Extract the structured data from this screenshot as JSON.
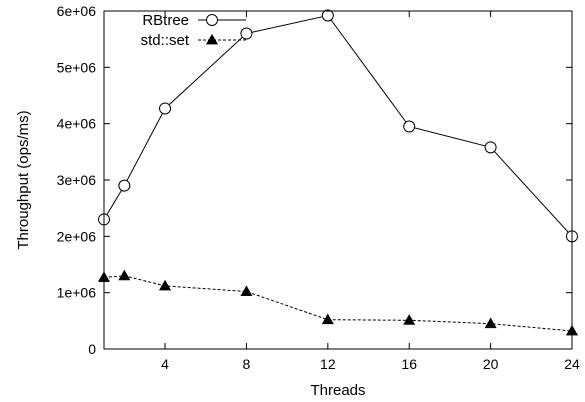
{
  "chart_data": {
    "type": "line",
    "xlabel": "Threads",
    "ylabel": "Throughput (ops/ms)",
    "xlim": [
      1,
      24
    ],
    "ylim": [
      0,
      6000000
    ],
    "x_ticks": [
      4,
      8,
      12,
      16,
      20,
      24
    ],
    "x_tick_labels": [
      "4",
      "8",
      "12",
      "16",
      "20",
      "24"
    ],
    "y_ticks": [
      0,
      1000000,
      2000000,
      3000000,
      4000000,
      5000000,
      6000000
    ],
    "y_tick_labels": [
      "0",
      "1e+06",
      "2e+06",
      "3e+06",
      "4e+06",
      "5e+06",
      "6e+06"
    ],
    "grid": false,
    "legend_position": "top-left",
    "series": [
      {
        "name": "RBtree",
        "marker": "open-circle",
        "line_style": "solid",
        "color": "#000000",
        "x": [
          1,
          2,
          4,
          8,
          12,
          16,
          20,
          24
        ],
        "y": [
          2300000,
          2900000,
          4270000,
          5600000,
          5920000,
          3950000,
          3580000,
          2000000
        ]
      },
      {
        "name": "std::set",
        "marker": "filled-triangle",
        "line_style": "dashed",
        "color": "#000000",
        "x": [
          1,
          2,
          4,
          8,
          12,
          16,
          20,
          24
        ],
        "y": [
          1270000,
          1300000,
          1120000,
          1020000,
          520000,
          510000,
          450000,
          320000
        ]
      }
    ]
  }
}
